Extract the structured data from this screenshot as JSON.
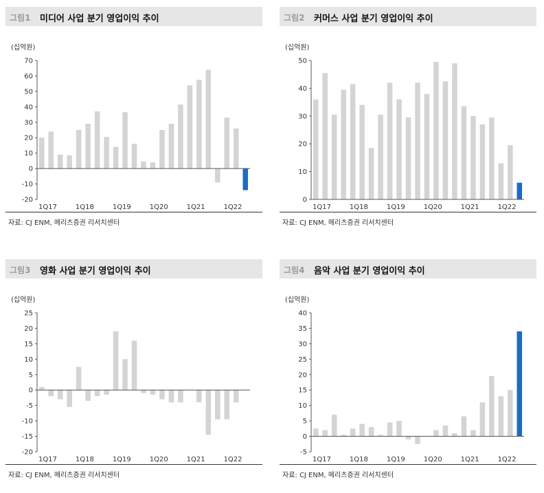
{
  "colors": {
    "bar": "#d4d4d4",
    "highlight": "#1f6bc0",
    "axis": "#555555"
  },
  "chart_data": [
    {
      "type": "bar",
      "figure_label": "그림1",
      "title": "미디어 사업 분기 영업이익 추이",
      "unit": "(십억원)",
      "source": "자료: CJ ENM, 메리츠증권 리서치센터",
      "ylim": [
        -20,
        70
      ],
      "yticks": [
        -20,
        -10,
        0,
        10,
        20,
        30,
        40,
        50,
        60,
        70
      ],
      "xtick_labels": [
        "1Q17",
        "1Q18",
        "1Q19",
        "1Q20",
        "1Q21",
        "1Q22"
      ],
      "xtick_indices": [
        0,
        4,
        8,
        12,
        16,
        20
      ],
      "highlight_last": true,
      "values": [
        20,
        24,
        9,
        8.5,
        25,
        29,
        37,
        20.5,
        14,
        36.5,
        16,
        4.5,
        4,
        25,
        29,
        41.5,
        54,
        57.5,
        64,
        -9,
        33,
        26,
        -14
      ]
    },
    {
      "type": "bar",
      "figure_label": "그림2",
      "title": "커머스 사업 분기 영업이익 추이",
      "unit": "(십억원)",
      "source": "자료: CJ ENM, 메리츠증권 리서치센터",
      "ylim": [
        0,
        50
      ],
      "yticks": [
        0,
        10,
        20,
        30,
        40,
        50
      ],
      "xtick_labels": [
        "1Q17",
        "1Q18",
        "1Q19",
        "1Q20",
        "1Q21",
        "1Q22"
      ],
      "xtick_indices": [
        0,
        4,
        8,
        12,
        16,
        20
      ],
      "highlight_last": true,
      "values": [
        36,
        45.5,
        30.5,
        39.5,
        41.5,
        34,
        18.5,
        30.5,
        42,
        36,
        29.5,
        42,
        38,
        49.5,
        42.5,
        49,
        33.5,
        30,
        27,
        29.5,
        13,
        19.5,
        6
      ]
    },
    {
      "type": "bar",
      "figure_label": "그림3",
      "title": "영화 사업 분기 영업이익 추이",
      "unit": "(십억원)",
      "source": "자료: CJ ENM, 메리츠증권 리서치센터",
      "ylim": [
        -20,
        25
      ],
      "yticks": [
        -20,
        -15,
        -10,
        -5,
        0,
        5,
        10,
        15,
        20,
        25
      ],
      "xtick_labels": [
        "1Q17",
        "1Q18",
        "1Q19",
        "1Q20",
        "1Q21",
        "1Q22"
      ],
      "xtick_indices": [
        0,
        4,
        8,
        12,
        16,
        20
      ],
      "highlight_last": false,
      "values": [
        1,
        -2,
        -3,
        -5.5,
        7.5,
        -3.5,
        -2,
        -1.5,
        19,
        10,
        16,
        -1,
        -1.5,
        -3,
        -4,
        -4,
        0,
        -4,
        -14.5,
        -9.5,
        -9.5,
        -4,
        0
      ]
    },
    {
      "type": "bar",
      "figure_label": "그림4",
      "title": "음악 사업 분기 영업이익 추이",
      "unit": "(십억원)",
      "source": "자료: CJ ENM, 메리츠증권 리서치센터",
      "ylim": [
        -5,
        40
      ],
      "yticks": [
        -5,
        0,
        5,
        10,
        15,
        20,
        25,
        30,
        35,
        40
      ],
      "xtick_labels": [
        "1Q17",
        "1Q18",
        "1Q19",
        "1Q20",
        "1Q21",
        "1Q22"
      ],
      "xtick_indices": [
        0,
        4,
        8,
        12,
        16,
        20
      ],
      "highlight_last": true,
      "values": [
        2.5,
        2,
        7,
        0.5,
        2.5,
        4,
        3,
        0.5,
        4.5,
        5,
        -1,
        -2.5,
        0,
        2,
        3.5,
        1,
        6.5,
        2,
        11,
        19.5,
        13,
        15,
        34
      ]
    }
  ]
}
